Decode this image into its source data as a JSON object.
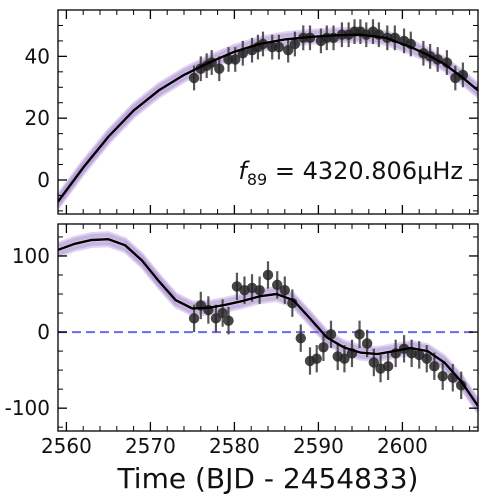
{
  "chart_data": [
    {
      "type": "scatter",
      "panel": "top",
      "xlim": [
        2559,
        2609
      ],
      "ylim": [
        -11,
        55
      ],
      "yticks": [
        0,
        20,
        40
      ],
      "ytick_labels": [
        "0",
        "20",
        "40"
      ],
      "xticks": [
        2560,
        2570,
        2580,
        2590,
        2600
      ],
      "annotation": {
        "symbol": "f",
        "subscript": "89",
        "text": " = 4320.806μHz"
      },
      "model_line": {
        "x": [
          2559,
          2562,
          2565,
          2568,
          2571,
          2574,
          2577,
          2580,
          2583,
          2586,
          2589,
          2592,
          2595,
          2598,
          2601,
          2603,
          2605,
          2607,
          2609
        ],
        "y": [
          -7,
          4,
          14,
          22.5,
          29,
          34,
          38,
          41.5,
          44,
          45.5,
          46.3,
          46.8,
          47,
          46,
          43,
          40.5,
          37.5,
          33.5,
          29
        ]
      },
      "x": [
        2575.2,
        2576.0,
        2576.7,
        2577.3,
        2578.2,
        2579.3,
        2580.1,
        2581.0,
        2582.1,
        2582.8,
        2583.4,
        2584.5,
        2585.3,
        2586.4,
        2587.2,
        2588.2,
        2589.0,
        2590.3,
        2591.0,
        2591.8,
        2592.8,
        2593.6,
        2594.3,
        2595.0,
        2595.7,
        2596.5,
        2597.2,
        2598.2,
        2599.1,
        2600.2,
        2601.0,
        2602.5,
        2603.3,
        2604.2,
        2605.3,
        2606.3,
        2607.2
      ],
      "y": [
        33,
        36,
        37,
        38,
        36,
        39,
        39,
        41,
        42,
        43,
        44,
        43,
        43,
        42,
        44,
        46,
        46,
        45,
        46,
        46,
        47,
        47,
        48,
        48,
        47,
        48,
        47,
        46,
        46,
        45,
        44,
        41,
        40,
        39,
        38,
        33,
        34
      ],
      "error": [
        4,
        4,
        4,
        4,
        4,
        4,
        4,
        4,
        4,
        4,
        4,
        4,
        4,
        4,
        4,
        4,
        4,
        4,
        4,
        4,
        4,
        4,
        4,
        4,
        4,
        4,
        4,
        4,
        4,
        4,
        4,
        4,
        4,
        4,
        4,
        4,
        4
      ]
    },
    {
      "type": "scatter",
      "panel": "bottom",
      "xlim": [
        2559,
        2609
      ],
      "ylim": [
        -130,
        142
      ],
      "yticks": [
        -100,
        0,
        100
      ],
      "ytick_labels": [
        "-100",
        "0",
        "100"
      ],
      "xticks": [
        2560,
        2570,
        2580,
        2590,
        2600
      ],
      "xtick_labels": [
        "2560",
        "2570",
        "2580",
        "2590",
        "2600"
      ],
      "xlabel": "Time (BJD - 2454833)",
      "reference_line": {
        "y": 0,
        "color": "#6a6af0"
      },
      "model_line": {
        "x": [
          2559,
          2561,
          2563,
          2565,
          2567,
          2569,
          2571,
          2573,
          2575,
          2577,
          2579,
          2581,
          2583,
          2585,
          2587,
          2589,
          2591,
          2593,
          2595,
          2597,
          2599,
          2601,
          2603,
          2605,
          2607,
          2609
        ],
        "y": [
          108,
          116,
          121,
          122,
          114,
          94,
          67,
          42,
          31,
          32,
          36,
          41,
          47,
          50,
          42,
          18,
          -7,
          -20,
          -27,
          -29,
          -25,
          -21,
          -25,
          -40,
          -65,
          -97
        ]
      },
      "x": [
        2575.2,
        2576.0,
        2576.9,
        2577.8,
        2578.6,
        2579.3,
        2580.3,
        2581.2,
        2582.1,
        2583.0,
        2584.0,
        2585.1,
        2586.0,
        2586.9,
        2587.9,
        2589.0,
        2589.8,
        2590.6,
        2591.5,
        2592.3,
        2593.1,
        2594.0,
        2594.9,
        2595.8,
        2596.6,
        2597.4,
        2598.3,
        2599.2,
        2600.2,
        2601.1,
        2602.0,
        2602.9,
        2603.8,
        2604.8,
        2606.0,
        2607.0
      ],
      "y": [
        18,
        35,
        29,
        18,
        25,
        15,
        60,
        55,
        58,
        55,
        75,
        62,
        55,
        38,
        -8,
        -38,
        -35,
        -20,
        -3,
        -32,
        -35,
        -28,
        -3,
        -15,
        -40,
        -48,
        -45,
        -28,
        -22,
        -28,
        -30,
        -35,
        -45,
        -58,
        -60,
        -70
      ],
      "error": [
        18,
        18,
        18,
        18,
        18,
        18,
        18,
        18,
        18,
        18,
        18,
        18,
        18,
        18,
        18,
        18,
        18,
        18,
        18,
        18,
        18,
        18,
        18,
        18,
        18,
        18,
        18,
        18,
        18,
        18,
        18,
        18,
        18,
        18,
        18,
        18
      ]
    }
  ],
  "colors": {
    "point": "#262626",
    "model": "#000000",
    "band": "#8e63c7",
    "reference": "#6a6af0"
  }
}
